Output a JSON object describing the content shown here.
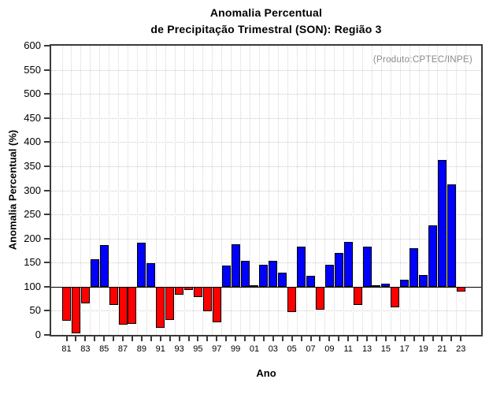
{
  "chart_data": {
    "type": "bar",
    "title_line1": "Anomalia Percentual",
    "title_line2": "de Precipitação Trimestral (SON): Região 3",
    "source_note": "(Produto:CPTEC/INPE)",
    "xlabel": "Ano",
    "ylabel": "Anomalia Percentual (%)",
    "ylim": [
      0,
      600
    ],
    "ytick_step": 50,
    "baseline": 100,
    "grid": "dotted",
    "x_tick_labels": [
      "81",
      "83",
      "85",
      "87",
      "89",
      "91",
      "93",
      "95",
      "97",
      "99",
      "01",
      "03",
      "05",
      "07",
      "09",
      "11",
      "13",
      "15",
      "17",
      "19",
      "21",
      "23"
    ],
    "years": [
      1981,
      1982,
      1983,
      1984,
      1985,
      1986,
      1987,
      1988,
      1989,
      1990,
      1991,
      1992,
      1993,
      1994,
      1995,
      1996,
      1997,
      1998,
      1999,
      2000,
      2001,
      2002,
      2003,
      2004,
      2005,
      2006,
      2007,
      2008,
      2009,
      2010,
      2011,
      2012,
      2013,
      2014,
      2015,
      2016,
      2017,
      2018,
      2019,
      2020,
      2021,
      2022,
      2023
    ],
    "values": [
      30,
      3,
      66,
      157,
      187,
      62,
      22,
      23,
      192,
      149,
      15,
      31,
      83,
      93,
      79,
      50,
      26,
      144,
      188,
      154,
      104,
      146,
      154,
      129,
      48,
      184,
      123,
      53,
      145,
      170,
      194,
      63,
      184,
      102,
      107,
      58,
      115,
      180,
      124,
      228,
      364,
      313,
      90
    ],
    "colors": {
      "above_baseline": "#0000ff",
      "below_baseline": "#ff0000",
      "bar_outline": "#000000",
      "axis": "#3a3a3a",
      "source_note_text": "#8a8a8a"
    }
  }
}
